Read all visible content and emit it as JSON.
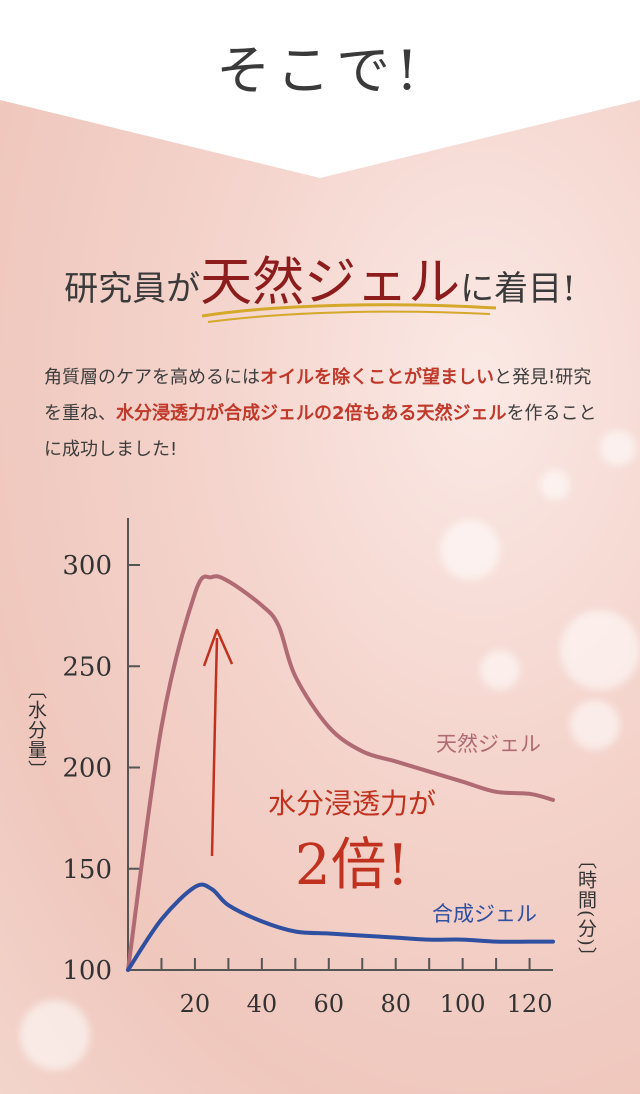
{
  "header": {
    "title": "そこで!"
  },
  "subhead": {
    "pre": "研究員が",
    "emphasis": "天然ジェル",
    "post": "に着目!"
  },
  "body": {
    "p1": "角質層のケアを高めるには",
    "h1": "オイルを除くことが望ましい",
    "p2": "と発見!研究を重ね、",
    "h2": "水分浸透力が合成ジェルの2倍もある天然ジェル",
    "p3": "を作ることに成功しました!"
  },
  "callout": {
    "line1": "水分浸透力が",
    "line2": "2倍!"
  },
  "colors": {
    "natural": "#b06a74",
    "synthetic": "#2f4fa0",
    "accent": "#c0321f"
  },
  "chart_data": {
    "type": "line",
    "ylabel": "〔水分量〕",
    "xlabel": "〔時間(分)〕",
    "ylim": [
      100,
      320
    ],
    "xlim": [
      0,
      127
    ],
    "yticks": [
      100,
      150,
      200,
      250,
      300
    ],
    "xticks": [
      20,
      40,
      60,
      80,
      100,
      120
    ],
    "series": [
      {
        "name": "天然ジェル",
        "x": [
          0,
          10,
          20,
          25,
          30,
          40,
          45,
          50,
          60,
          70,
          80,
          90,
          100,
          110,
          120,
          127
        ],
        "y": [
          100,
          220,
          286,
          294,
          292,
          280,
          270,
          245,
          220,
          208,
          203,
          198,
          193,
          188,
          187,
          184
        ]
      },
      {
        "name": "合成ジェル",
        "x": [
          0,
          10,
          20,
          25,
          30,
          40,
          50,
          60,
          70,
          80,
          90,
          100,
          110,
          120,
          127
        ],
        "y": [
          100,
          125,
          141,
          140,
          132,
          124,
          119,
          118,
          117,
          116,
          115,
          115,
          114,
          114,
          114
        ]
      }
    ]
  }
}
